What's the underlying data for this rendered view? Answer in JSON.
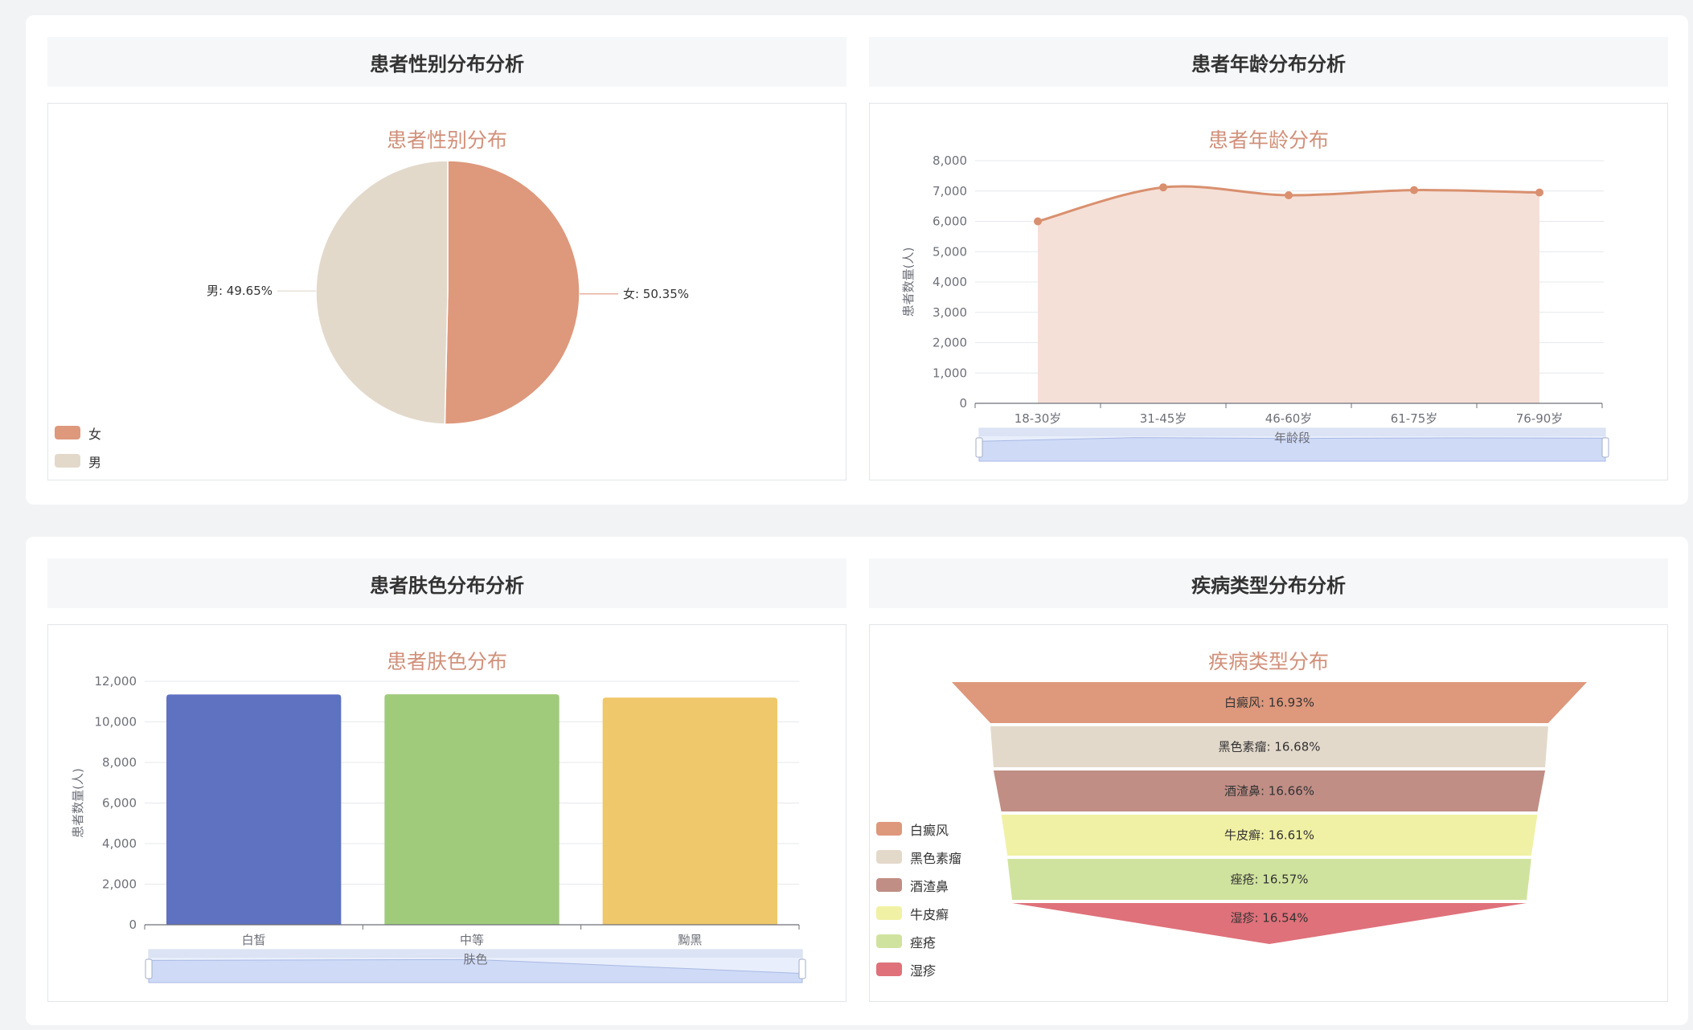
{
  "sections": {
    "gender": {
      "header": "患者性别分布分析"
    },
    "age": {
      "header": "患者年龄分布分析"
    },
    "skin": {
      "header": "患者肤色分布分析"
    },
    "disease": {
      "header": "疾病类型分布分析"
    }
  },
  "chart_data": [
    {
      "id": "gender",
      "type": "pie",
      "title": "患者性别分布",
      "slices": [
        {
          "label": "女",
          "value": 50.35,
          "display": "女: 50.35%",
          "color": "#de987c"
        },
        {
          "label": "男",
          "value": 49.65,
          "display": "男: 49.65%",
          "color": "#e3d9cb"
        }
      ],
      "legend_position": "bottom-left"
    },
    {
      "id": "age",
      "type": "area",
      "title": "患者年龄分布",
      "xlabel": "年龄段",
      "ylabel": "患者数量(人)",
      "categories": [
        "18-30岁",
        "31-45岁",
        "46-60岁",
        "61-75岁",
        "76-90岁"
      ],
      "values": [
        6000,
        7120,
        6860,
        7030,
        6950
      ],
      "ylim": [
        0,
        8000
      ],
      "yticks": [
        "0",
        "1,000",
        "2,000",
        "3,000",
        "4,000",
        "5,000",
        "6,000",
        "7,000",
        "8,000"
      ],
      "color": "#d9906f",
      "fill": "#f5e0d7",
      "grid": true,
      "zoom_slider": true
    },
    {
      "id": "skin",
      "type": "bar",
      "title": "患者肤色分布",
      "xlabel": "肤色",
      "ylabel": "患者数量(人)",
      "categories": [
        "白皙",
        "中等",
        "黝黑"
      ],
      "values": [
        11350,
        11360,
        11200
      ],
      "colors": [
        "#5f71c1",
        "#a0cb7b",
        "#eec86a"
      ],
      "ylim": [
        0,
        12000
      ],
      "yticks": [
        "0",
        "2,000",
        "4,000",
        "6,000",
        "8,000",
        "10,000",
        "12,000"
      ],
      "grid": true,
      "zoom_slider": true
    },
    {
      "id": "disease",
      "type": "funnel",
      "title": "疾病类型分布",
      "items": [
        {
          "label": "白癜风",
          "value": 16.93,
          "display": "白癜风: 16.93%",
          "color": "#de987c"
        },
        {
          "label": "黑色素瘤",
          "value": 16.68,
          "display": "黑色素瘤: 16.68%",
          "color": "#e3d9cb"
        },
        {
          "label": "酒渣鼻",
          "value": 16.66,
          "display": "酒渣鼻: 16.66%",
          "color": "#c08e85"
        },
        {
          "label": "牛皮癣",
          "value": 16.61,
          "display": "牛皮癣: 16.61%",
          "color": "#f1f1a5"
        },
        {
          "label": "痤疮",
          "value": 16.57,
          "display": "痤疮: 16.57%",
          "color": "#d0e39e"
        },
        {
          "label": "湿疹",
          "value": 16.54,
          "display": "湿疹: 16.54%",
          "color": "#df717a"
        }
      ],
      "legend_position": "left"
    }
  ]
}
